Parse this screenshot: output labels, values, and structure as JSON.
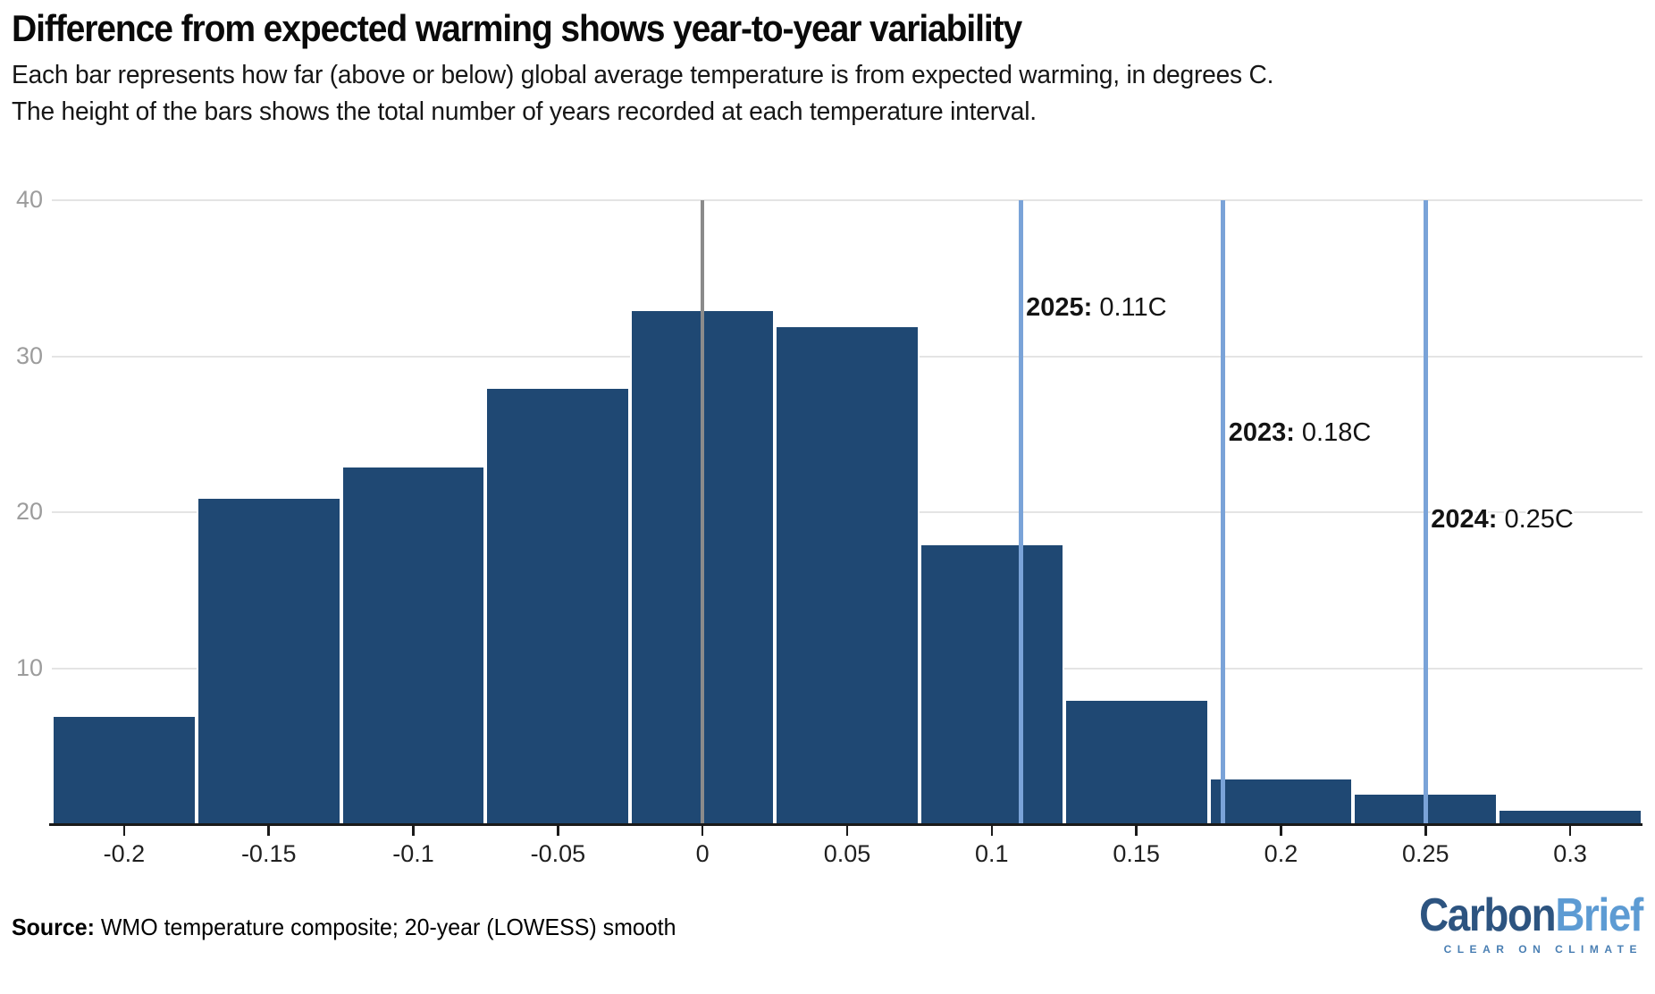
{
  "title": "Difference from expected warming shows year-to-year variability",
  "subtitle_line1": "Each bar represents how far (above or below) global average temperature is from expected warming, in degrees C.",
  "subtitle_line2": "The height of the bars shows the total number of years recorded at each temperature interval.",
  "source": {
    "label": "Source:",
    "text": " WMO temperature composite; 20-year (LOWESS) smooth"
  },
  "logo": {
    "part1": "Carbon",
    "part2": "Brief",
    "tagline": "CLEAR ON CLIMATE"
  },
  "colors": {
    "bar": "#1f4873",
    "bar_stroke": "#ffffff",
    "reference_line": "#7aa3d8",
    "zero_line": "#8b8b8b",
    "gridline": "#e4e4e4",
    "axis": "#1a1a1a",
    "y_label": "#9c9c9c",
    "x_label": "#1f1f1f",
    "logo_dark": "#2d5480",
    "logo_light": "#5d9bd3"
  },
  "chart_data": {
    "type": "bar",
    "title": "Difference from expected warming shows year-to-year variability",
    "xlabel": "",
    "ylabel": "",
    "categories": [
      -0.2,
      -0.15,
      -0.1,
      -0.05,
      0,
      0.05,
      0.1,
      0.15,
      0.2,
      0.25,
      0.3
    ],
    "values": [
      7,
      21,
      23,
      28,
      33,
      32,
      18,
      8,
      3,
      2,
      1
    ],
    "bin_width": 0.05,
    "xlim": [
      -0.225,
      0.325
    ],
    "ylim": [
      0,
      40
    ],
    "x_ticks": [
      -0.2,
      -0.15,
      -0.1,
      -0.05,
      0,
      0.05,
      0.1,
      0.15,
      0.2,
      0.25,
      0.3
    ],
    "x_tick_labels": [
      "-0.2",
      "-0.15",
      "-0.1",
      "-0.05",
      "0",
      "0.05",
      "0.1",
      "0.15",
      "0.2",
      "0.25",
      "0.3"
    ],
    "y_ticks": [
      10,
      20,
      30,
      40
    ],
    "grid": "horizontal",
    "legend": "none",
    "zero_line_x": 0,
    "reference_lines": [
      {
        "year_label": "2025:",
        "value_label": "0.11C",
        "x": 0.11,
        "label_y": 33
      },
      {
        "year_label": "2023:",
        "value_label": "0.18C",
        "x": 0.18,
        "label_y": 25
      },
      {
        "year_label": "2024:",
        "value_label": "0.25C",
        "x": 0.25,
        "label_y": 19.4
      }
    ]
  }
}
